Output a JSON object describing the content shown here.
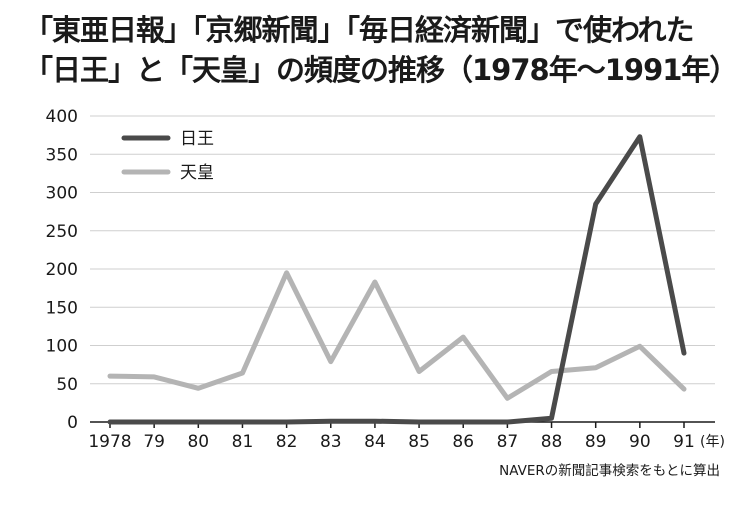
{
  "chart_data": {
    "type": "line",
    "title_lines": [
      "「東亜日報」「京郷新聞」「毎日経済新聞」で使われた",
      "「日王」と「天皇」の頻度の推移（1978年〜1991年）"
    ],
    "x_tick_labels": [
      "1978",
      "79",
      "80",
      "81",
      "82",
      "83",
      "84",
      "85",
      "86",
      "87",
      "88",
      "89",
      "90",
      "91"
    ],
    "x_unit": "(年)",
    "ylim": [
      0,
      400
    ],
    "y_ticks": [
      "0",
      "50",
      "100",
      "150",
      "200",
      "250",
      "300",
      "350",
      "400"
    ],
    "grid": true,
    "legend_position": "top-left",
    "series": [
      {
        "name": "日王",
        "color": "#4a4a4a",
        "values": [
          0,
          0,
          0,
          0,
          0,
          1,
          1,
          0,
          0,
          0,
          5,
          285,
          373,
          90
        ]
      },
      {
        "name": "天皇",
        "color": "#b4b4b4",
        "values": [
          60,
          59,
          44,
          64,
          195,
          79,
          183,
          66,
          111,
          31,
          66,
          71,
          99,
          43
        ]
      }
    ],
    "source_note": "NAVERの新聞記事検索をもとに算出"
  }
}
